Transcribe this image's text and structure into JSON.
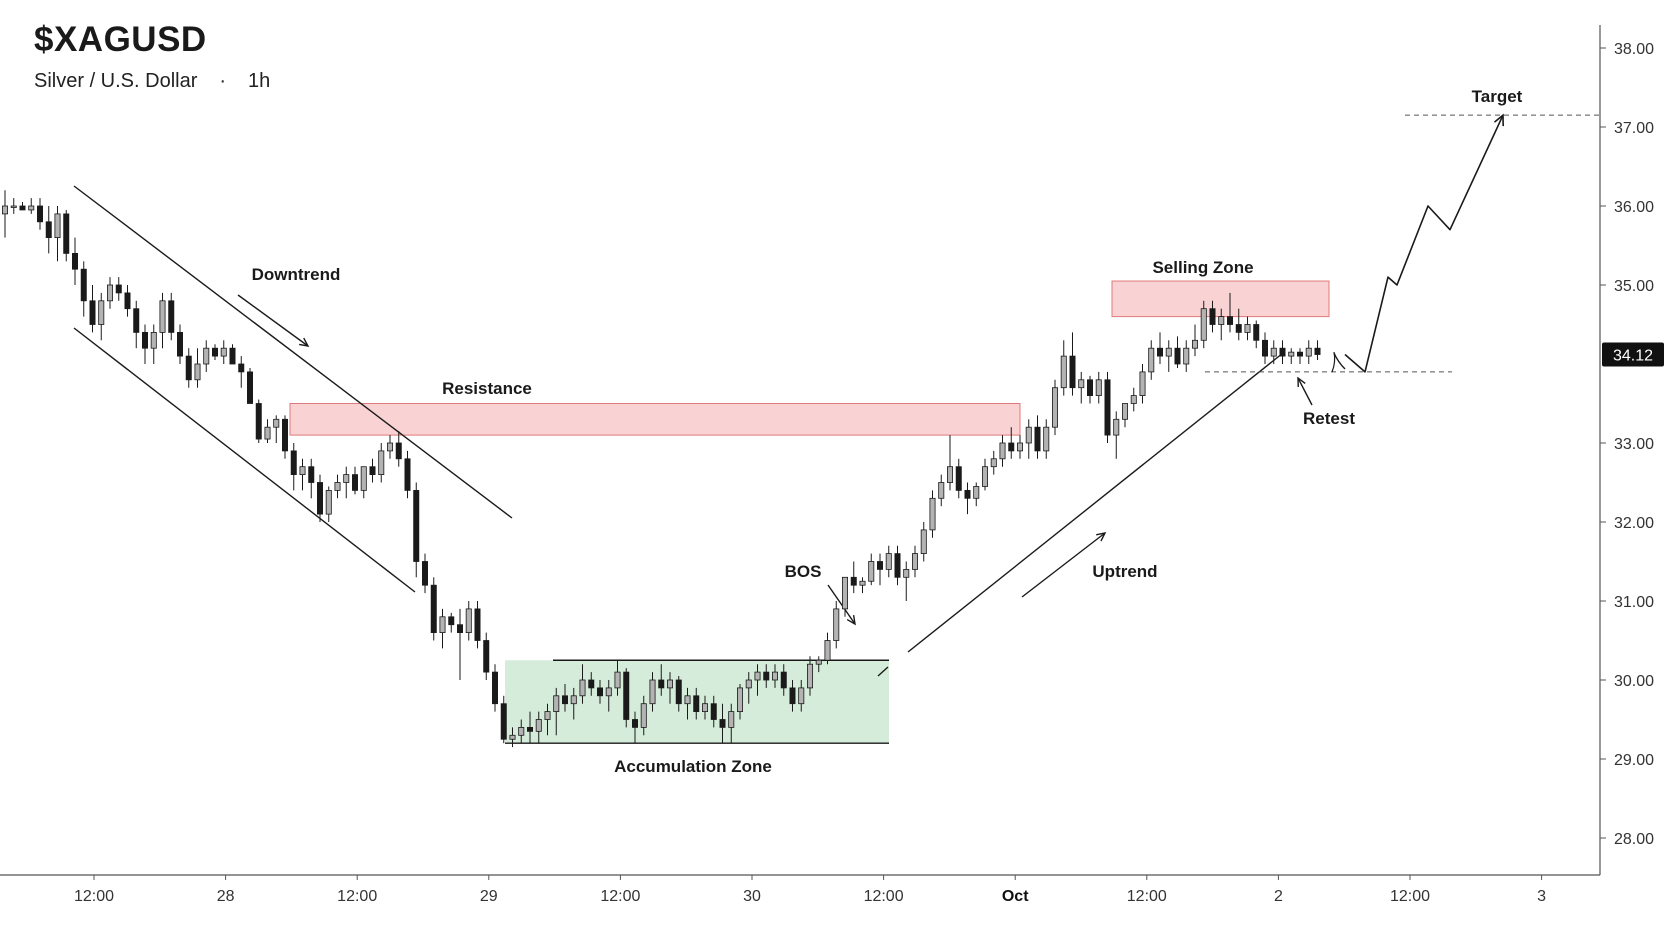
{
  "header": {
    "symbol": "$XAGUSD",
    "instrument": "Silver / U.S. Dollar",
    "separator": "·",
    "interval": "1h"
  },
  "colors": {
    "bull_candle": "#b3b3b3",
    "bear_candle": "#1a1a1a",
    "resistance_zone": "#f9d3d3",
    "resistance_border": "#e07a7a",
    "accumulation_zone": "#d6ecdb",
    "price_badge": "#111111",
    "axis": "#555555"
  },
  "chart_data": {
    "type": "candlestick",
    "x_axis_labels": [
      "12:00",
      "28",
      "12:00",
      "29",
      "12:00",
      "30",
      "12:00",
      "Oct",
      "12:00",
      "2",
      "12:00",
      "3"
    ],
    "x_axis_bold_label": "Oct",
    "y_axis_labels": [
      "38.00",
      "37.00",
      "36.00",
      "35.00",
      "34.12",
      "33.00",
      "32.00",
      "31.00",
      "30.00",
      "29.00",
      "28.00"
    ],
    "y_range": [
      27.5,
      38.3
    ],
    "current_price": 34.12,
    "candles": [
      [
        35.9,
        36.2,
        35.6,
        36.0
      ],
      [
        36.0,
        36.1,
        35.9,
        36.0
      ],
      [
        36.0,
        36.05,
        35.95,
        35.95
      ],
      [
        35.95,
        36.1,
        35.9,
        36.0
      ],
      [
        36.0,
        36.1,
        35.7,
        35.8
      ],
      [
        35.8,
        36.0,
        35.4,
        35.6
      ],
      [
        35.6,
        36.0,
        35.3,
        35.9
      ],
      [
        35.9,
        35.95,
        35.3,
        35.4
      ],
      [
        35.4,
        35.6,
        35.0,
        35.2
      ],
      [
        35.2,
        35.3,
        34.6,
        34.8
      ],
      [
        34.8,
        35.0,
        34.4,
        34.5
      ],
      [
        34.5,
        34.9,
        34.3,
        34.8
      ],
      [
        34.8,
        35.1,
        34.7,
        35.0
      ],
      [
        35.0,
        35.1,
        34.8,
        34.9
      ],
      [
        34.9,
        35.0,
        34.6,
        34.7
      ],
      [
        34.7,
        34.8,
        34.2,
        34.4
      ],
      [
        34.4,
        34.5,
        34.0,
        34.2
      ],
      [
        34.2,
        34.5,
        34.0,
        34.4
      ],
      [
        34.4,
        34.9,
        34.2,
        34.8
      ],
      [
        34.8,
        34.9,
        34.3,
        34.4
      ],
      [
        34.4,
        34.5,
        34.0,
        34.1
      ],
      [
        34.1,
        34.2,
        33.7,
        33.8
      ],
      [
        33.8,
        34.2,
        33.7,
        34.0
      ],
      [
        34.0,
        34.3,
        33.9,
        34.2
      ],
      [
        34.2,
        34.25,
        34.05,
        34.1
      ],
      [
        34.1,
        34.3,
        34.0,
        34.2
      ],
      [
        34.2,
        34.25,
        34.0,
        34.0
      ],
      [
        34.0,
        34.1,
        33.7,
        33.9
      ],
      [
        33.9,
        33.95,
        33.5,
        33.5
      ],
      [
        33.5,
        33.55,
        33.0,
        33.05
      ],
      [
        33.05,
        33.3,
        33.0,
        33.2
      ],
      [
        33.2,
        33.35,
        33.0,
        33.3
      ],
      [
        33.3,
        33.35,
        32.8,
        32.9
      ],
      [
        32.9,
        33.0,
        32.4,
        32.6
      ],
      [
        32.6,
        32.8,
        32.4,
        32.7
      ],
      [
        32.7,
        32.8,
        32.3,
        32.5
      ],
      [
        32.5,
        32.6,
        32.0,
        32.1
      ],
      [
        32.1,
        32.45,
        32.0,
        32.4
      ],
      [
        32.4,
        32.6,
        32.3,
        32.5
      ],
      [
        32.5,
        32.7,
        32.3,
        32.6
      ],
      [
        32.6,
        32.7,
        32.35,
        32.4
      ],
      [
        32.4,
        32.7,
        32.3,
        32.7
      ],
      [
        32.7,
        32.8,
        32.5,
        32.6
      ],
      [
        32.6,
        33.0,
        32.5,
        32.9
      ],
      [
        32.9,
        33.1,
        32.8,
        33.0
      ],
      [
        33.0,
        33.15,
        32.7,
        32.8
      ],
      [
        32.8,
        32.9,
        32.3,
        32.4
      ],
      [
        32.4,
        32.5,
        31.3,
        31.5
      ],
      [
        31.5,
        31.6,
        31.1,
        31.2
      ],
      [
        31.2,
        31.3,
        30.5,
        30.6
      ],
      [
        30.6,
        30.9,
        30.4,
        30.8
      ],
      [
        30.8,
        30.85,
        30.6,
        30.7
      ],
      [
        30.7,
        30.9,
        30.0,
        30.6
      ],
      [
        30.6,
        31.0,
        30.5,
        30.9
      ],
      [
        30.9,
        31.0,
        30.4,
        30.5
      ],
      [
        30.5,
        30.6,
        30.0,
        30.1
      ],
      [
        30.1,
        30.2,
        29.6,
        29.7
      ],
      [
        29.7,
        29.8,
        29.2,
        29.25
      ],
      [
        29.25,
        29.4,
        29.15,
        29.3
      ],
      [
        29.3,
        29.5,
        29.2,
        29.4
      ],
      [
        29.4,
        29.6,
        29.2,
        29.35
      ],
      [
        29.35,
        29.6,
        29.2,
        29.5
      ],
      [
        29.5,
        29.7,
        29.3,
        29.6
      ],
      [
        29.6,
        29.9,
        29.3,
        29.8
      ],
      [
        29.8,
        29.95,
        29.6,
        29.7
      ],
      [
        29.7,
        29.9,
        29.5,
        29.8
      ],
      [
        29.8,
        30.2,
        29.7,
        30.0
      ],
      [
        30.0,
        30.1,
        29.8,
        29.9
      ],
      [
        29.9,
        30.0,
        29.7,
        29.8
      ],
      [
        29.8,
        30.0,
        29.6,
        29.9
      ],
      [
        29.9,
        30.25,
        29.8,
        30.1
      ],
      [
        30.1,
        30.15,
        29.4,
        29.5
      ],
      [
        29.5,
        29.6,
        29.2,
        29.4
      ],
      [
        29.4,
        29.8,
        29.3,
        29.7
      ],
      [
        29.7,
        30.1,
        29.6,
        30.0
      ],
      [
        30.0,
        30.2,
        29.8,
        29.9
      ],
      [
        29.9,
        30.1,
        29.7,
        30.0
      ],
      [
        30.0,
        30.05,
        29.6,
        29.7
      ],
      [
        29.7,
        29.9,
        29.5,
        29.8
      ],
      [
        29.8,
        29.9,
        29.5,
        29.6
      ],
      [
        29.6,
        29.8,
        29.5,
        29.7
      ],
      [
        29.7,
        29.8,
        29.4,
        29.5
      ],
      [
        29.5,
        29.7,
        29.2,
        29.4
      ],
      [
        29.4,
        29.7,
        29.2,
        29.6
      ],
      [
        29.6,
        29.95,
        29.5,
        29.9
      ],
      [
        29.9,
        30.1,
        29.7,
        30.0
      ],
      [
        30.0,
        30.2,
        29.8,
        30.1
      ],
      [
        30.1,
        30.2,
        29.9,
        30.0
      ],
      [
        30.0,
        30.2,
        29.9,
        30.1
      ],
      [
        30.1,
        30.2,
        29.8,
        29.9
      ],
      [
        29.9,
        30.0,
        29.6,
        29.7
      ],
      [
        29.7,
        30.0,
        29.6,
        29.9
      ],
      [
        29.9,
        30.3,
        29.8,
        30.2
      ],
      [
        30.2,
        30.3,
        30.1,
        30.25
      ],
      [
        30.25,
        30.6,
        30.2,
        30.5
      ],
      [
        30.5,
        31.0,
        30.4,
        30.9
      ],
      [
        30.9,
        31.3,
        30.8,
        31.3
      ],
      [
        31.3,
        31.5,
        31.1,
        31.2
      ],
      [
        31.2,
        31.3,
        31.1,
        31.25
      ],
      [
        31.25,
        31.6,
        31.2,
        31.5
      ],
      [
        31.5,
        31.6,
        31.2,
        31.4
      ],
      [
        31.4,
        31.7,
        31.3,
        31.6
      ],
      [
        31.6,
        31.7,
        31.2,
        31.3
      ],
      [
        31.3,
        31.5,
        31.0,
        31.4
      ],
      [
        31.4,
        31.7,
        31.3,
        31.6
      ],
      [
        31.6,
        32.0,
        31.5,
        31.9
      ],
      [
        31.9,
        32.4,
        31.8,
        32.3
      ],
      [
        32.3,
        32.6,
        32.2,
        32.5
      ],
      [
        32.5,
        33.1,
        32.4,
        32.7
      ],
      [
        32.7,
        32.8,
        32.3,
        32.4
      ],
      [
        32.4,
        32.5,
        32.1,
        32.3
      ],
      [
        32.3,
        32.5,
        32.2,
        32.45
      ],
      [
        32.45,
        32.8,
        32.4,
        32.7
      ],
      [
        32.7,
        32.9,
        32.6,
        32.8
      ],
      [
        32.8,
        33.1,
        32.7,
        33.0
      ],
      [
        33.0,
        33.2,
        32.8,
        32.9
      ],
      [
        32.9,
        33.1,
        32.8,
        33.0
      ],
      [
        33.0,
        33.3,
        32.8,
        33.2
      ],
      [
        33.2,
        33.35,
        32.8,
        32.9
      ],
      [
        32.9,
        33.3,
        32.8,
        33.2
      ],
      [
        33.2,
        33.8,
        33.1,
        33.7
      ],
      [
        33.7,
        34.3,
        33.6,
        34.1
      ],
      [
        34.1,
        34.4,
        33.6,
        33.7
      ],
      [
        33.7,
        33.9,
        33.5,
        33.8
      ],
      [
        33.8,
        33.85,
        33.5,
        33.6
      ],
      [
        33.6,
        33.9,
        33.5,
        33.8
      ],
      [
        33.8,
        33.9,
        33.0,
        33.1
      ],
      [
        33.1,
        33.4,
        32.8,
        33.3
      ],
      [
        33.3,
        33.5,
        33.2,
        33.5
      ],
      [
        33.5,
        33.7,
        33.4,
        33.6
      ],
      [
        33.6,
        34.0,
        33.5,
        33.9
      ],
      [
        33.9,
        34.3,
        33.8,
        34.2
      ],
      [
        34.2,
        34.4,
        34.0,
        34.1
      ],
      [
        34.1,
        34.3,
        33.9,
        34.2
      ],
      [
        34.2,
        34.35,
        33.95,
        34.0
      ],
      [
        34.0,
        34.3,
        33.9,
        34.2
      ],
      [
        34.2,
        34.5,
        34.1,
        34.3
      ],
      [
        34.3,
        34.8,
        34.2,
        34.7
      ],
      [
        34.7,
        34.8,
        34.4,
        34.5
      ],
      [
        34.5,
        34.7,
        34.3,
        34.6
      ],
      [
        34.6,
        34.9,
        34.4,
        34.5
      ],
      [
        34.5,
        34.7,
        34.3,
        34.4
      ],
      [
        34.4,
        34.6,
        34.3,
        34.5
      ],
      [
        34.5,
        34.55,
        34.2,
        34.3
      ],
      [
        34.3,
        34.4,
        34.0,
        34.1
      ],
      [
        34.1,
        34.3,
        34.0,
        34.2
      ],
      [
        34.2,
        34.3,
        34.0,
        34.1
      ],
      [
        34.1,
        34.2,
        34.0,
        34.15
      ],
      [
        34.15,
        34.2,
        34.0,
        34.1
      ],
      [
        34.1,
        34.3,
        34.0,
        34.2
      ],
      [
        34.2,
        34.3,
        34.05,
        34.12
      ]
    ],
    "projection": [
      34.12,
      33.9,
      35.1,
      35.0,
      36.0,
      35.7,
      37.15
    ],
    "zones": [
      {
        "label": "Resistance",
        "from": 33.1,
        "to": 33.5
      },
      {
        "label": "Selling Zone",
        "from": 34.6,
        "to": 35.05
      },
      {
        "label": "Accumulation Zone",
        "from": 29.2,
        "to": 30.25
      }
    ],
    "levels": {
      "target": 37.15,
      "retest": 33.9
    }
  },
  "annotations": {
    "downtrend": "Downtrend",
    "resistance": "Resistance",
    "accumulation": "Accumulation Zone",
    "bos": "BOS",
    "uptrend": "Uptrend",
    "selling_zone": "Selling Zone",
    "retest": "Retest",
    "target": "Target"
  }
}
